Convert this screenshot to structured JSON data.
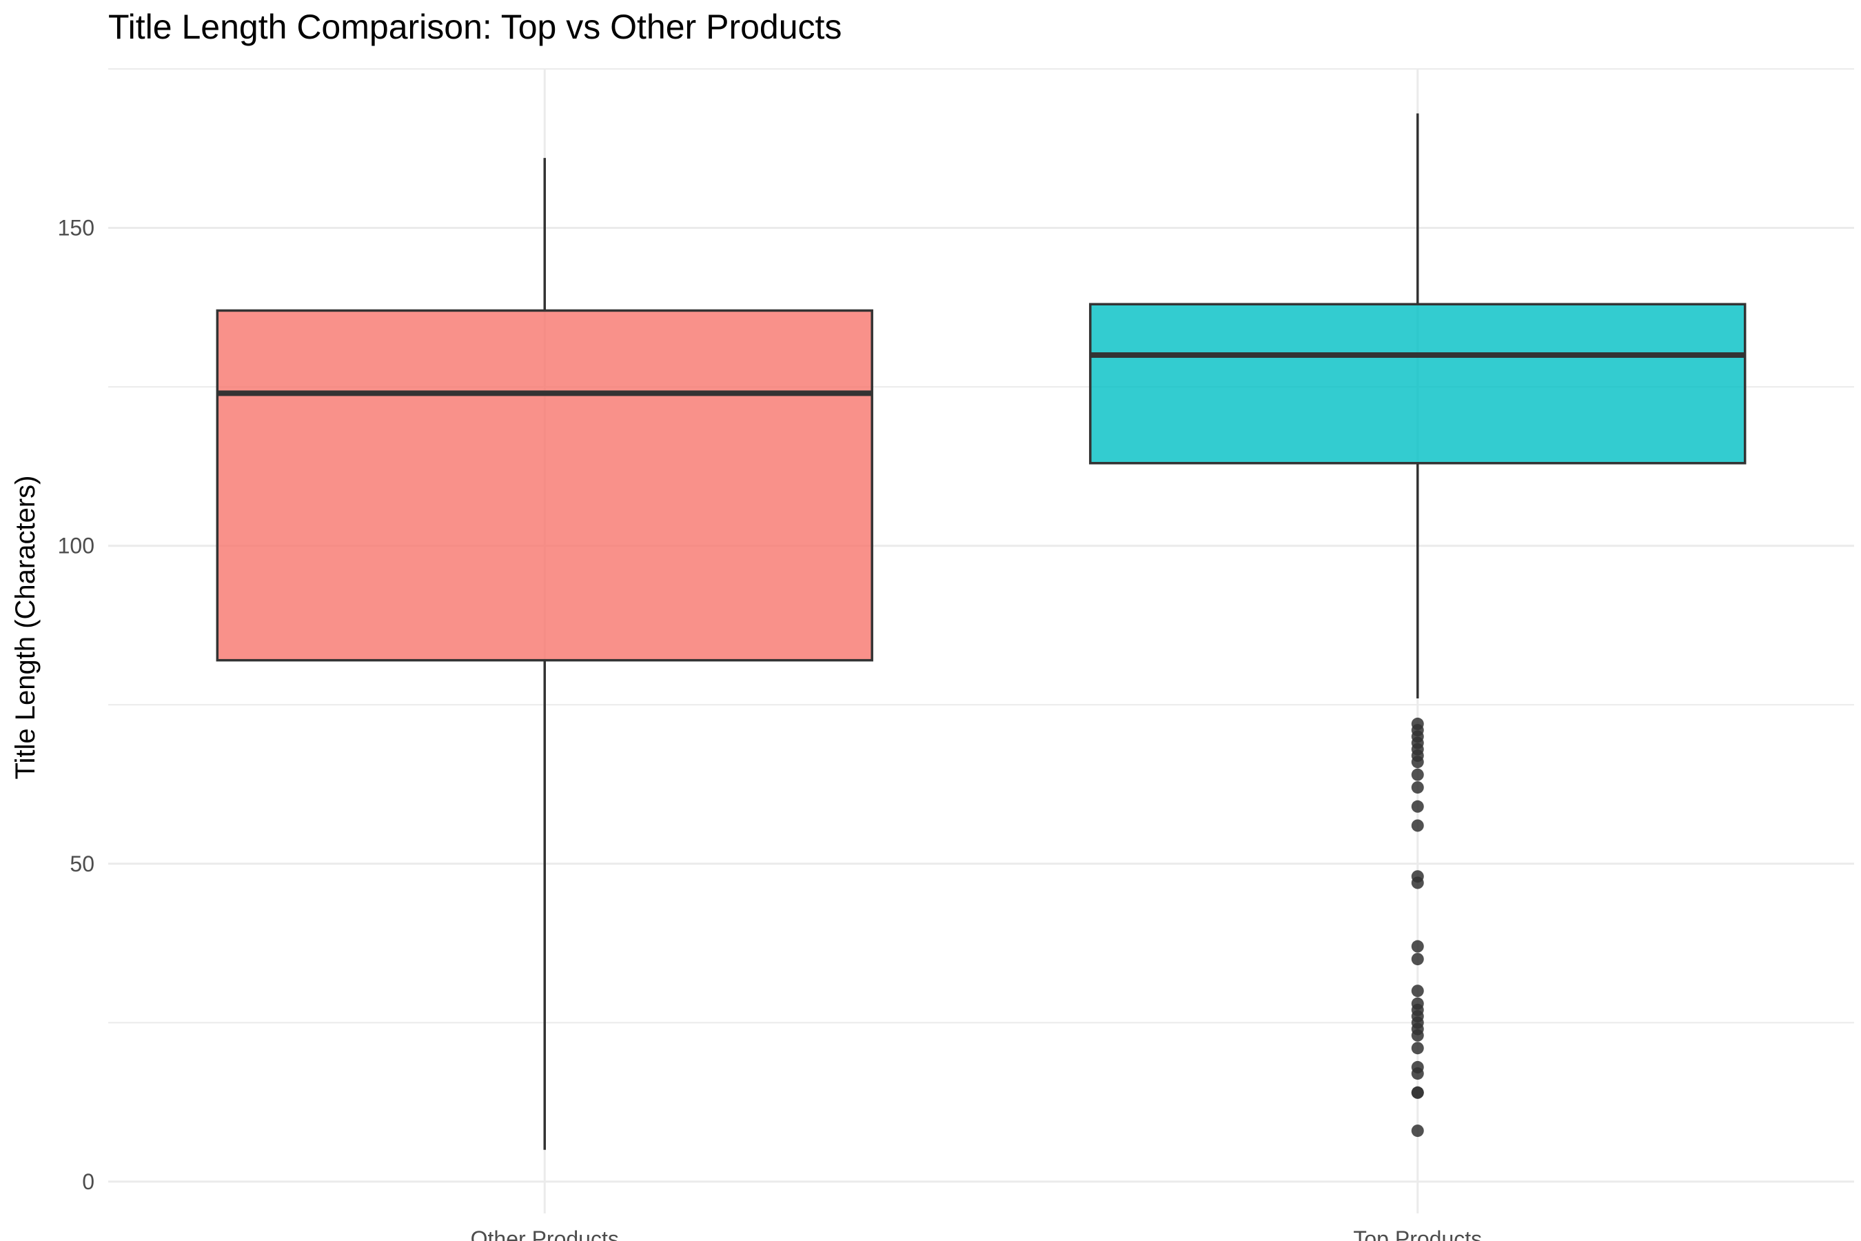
{
  "chart_data": {
    "type": "boxplot",
    "title": "Title Length Comparison: Top vs Other Products",
    "xlabel": "",
    "ylabel": "Title Length (Characters)",
    "ylim": [
      -5,
      175
    ],
    "yticks": [
      0,
      50,
      100,
      150
    ],
    "grid": true,
    "categories": [
      "Other Products",
      "Top Products"
    ],
    "boxes": [
      {
        "category": "Other Products",
        "min": 5,
        "q1": 82,
        "median": 124,
        "q3": 137,
        "max": 161,
        "outliers": [],
        "color": "#F8766D"
      },
      {
        "category": "Top Products",
        "min": 76,
        "q1": 113,
        "median": 130,
        "q3": 138,
        "max": 168,
        "outliers": [
          72,
          71,
          70,
          69,
          68,
          67,
          66,
          64,
          62,
          59,
          56,
          48,
          47,
          37,
          35,
          30,
          28,
          27,
          26,
          25,
          24,
          23,
          21,
          18,
          17,
          14,
          14,
          8
        ],
        "color": "#00BFC4"
      }
    ]
  },
  "colors": {
    "grid": "#ebebeb",
    "box_stroke": "#333333",
    "outlier": "#333333"
  }
}
